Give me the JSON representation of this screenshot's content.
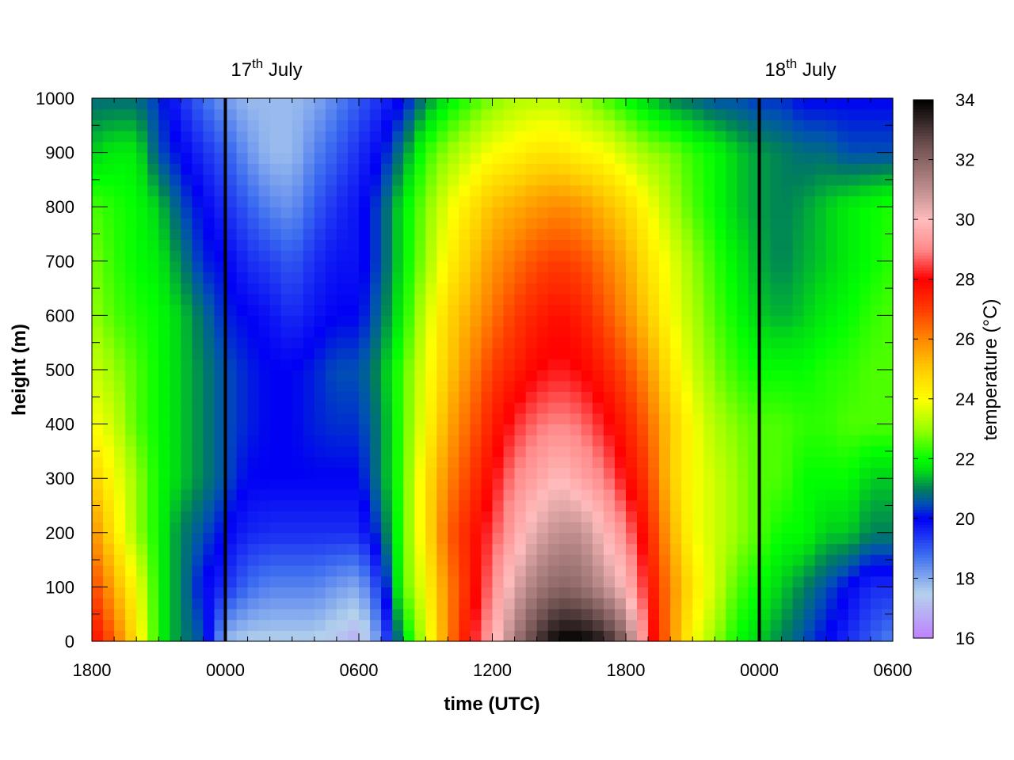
{
  "chart_data": {
    "type": "heatmap",
    "xlabel": "time (UTC)",
    "ylabel": "height (m)",
    "colorbar_label": "temperature (°C)",
    "x_unit": "hours since 1800 UTC 16 July",
    "xlim": [
      0,
      36
    ],
    "ylim": [
      0,
      1000
    ],
    "zlim": [
      16,
      34
    ],
    "x_ticks": [
      {
        "pos": 0,
        "label": "1800"
      },
      {
        "pos": 6,
        "label": "0000"
      },
      {
        "pos": 12,
        "label": "0600"
      },
      {
        "pos": 18,
        "label": "1200"
      },
      {
        "pos": 24,
        "label": "1800"
      },
      {
        "pos": 30,
        "label": "0000"
      },
      {
        "pos": 36,
        "label": "0600"
      }
    ],
    "y_ticks": [
      0,
      100,
      200,
      300,
      400,
      500,
      600,
      700,
      800,
      900,
      1000
    ],
    "colorbar_ticks": [
      16,
      18,
      20,
      22,
      24,
      26,
      28,
      30,
      32,
      34
    ],
    "day_markers": [
      {
        "pos": 6,
        "day": "17",
        "suffix": "th",
        "month": "July"
      },
      {
        "pos": 30,
        "day": "18",
        "suffix": "th",
        "month": "July"
      }
    ],
    "colormap": [
      {
        "t": 16.0,
        "color": "#bf80ff"
      },
      {
        "t": 17.5,
        "color": "#b4d2ec"
      },
      {
        "t": 18.8,
        "color": "#3c6cf0"
      },
      {
        "t": 20.0,
        "color": "#0000f5"
      },
      {
        "t": 20.5,
        "color": "#0050b4"
      },
      {
        "t": 21.0,
        "color": "#00805a"
      },
      {
        "t": 21.6,
        "color": "#00dc14"
      },
      {
        "t": 22.0,
        "color": "#00ff00"
      },
      {
        "t": 23.0,
        "color": "#9aff00"
      },
      {
        "t": 24.0,
        "color": "#ffff00"
      },
      {
        "t": 25.0,
        "color": "#ffcc00"
      },
      {
        "t": 26.0,
        "color": "#ff8800"
      },
      {
        "t": 27.0,
        "color": "#ff3c00"
      },
      {
        "t": 28.0,
        "color": "#ff0000"
      },
      {
        "t": 29.0,
        "color": "#ff8a8a"
      },
      {
        "t": 30.0,
        "color": "#ffbcbc"
      },
      {
        "t": 31.0,
        "color": "#c08e8e"
      },
      {
        "t": 32.5,
        "color": "#6e5050"
      },
      {
        "t": 34.0,
        "color": "#000000"
      }
    ],
    "grid_hours": [
      0,
      1,
      2,
      3,
      4,
      5,
      6,
      7,
      8,
      9,
      10,
      11,
      12,
      13,
      14,
      15,
      16,
      17,
      18,
      19,
      20,
      21,
      22,
      23,
      24,
      25,
      26,
      27,
      28,
      29,
      30,
      31,
      32,
      33,
      34,
      35,
      36
    ],
    "grid_heights": [
      0,
      100,
      200,
      300,
      400,
      500,
      600,
      700,
      800,
      900,
      1000
    ],
    "temperature_grid": [
      [
        28.0,
        26.5,
        24.5,
        22.0,
        21.0,
        20.5,
        17.8,
        17.5,
        17.5,
        17.5,
        17.5,
        17.2,
        16.8,
        18.5,
        21.5,
        23.5,
        26.0,
        28.0,
        29.5,
        31.5,
        33.0,
        34.0,
        34.0,
        33.5,
        32.0,
        28.5,
        26.0,
        24.0,
        23.0,
        22.0,
        21.5,
        21.0,
        20.5,
        20.0,
        19.5,
        19.0,
        18.5
      ],
      [
        27.0,
        25.5,
        24.0,
        22.0,
        21.0,
        20.0,
        19.5,
        18.8,
        18.5,
        18.5,
        18.5,
        18.2,
        18.0,
        19.5,
        22.5,
        24.0,
        26.0,
        27.5,
        29.0,
        30.5,
        31.5,
        32.0,
        31.8,
        31.0,
        30.0,
        28.0,
        26.0,
        24.5,
        23.5,
        22.5,
        22.0,
        21.5,
        21.0,
        20.5,
        20.0,
        19.5,
        19.5
      ],
      [
        26.0,
        24.5,
        23.0,
        22.0,
        21.0,
        20.5,
        20.0,
        19.6,
        19.5,
        19.5,
        19.5,
        19.5,
        19.5,
        20.5,
        22.5,
        24.5,
        26.5,
        27.5,
        28.5,
        29.5,
        30.5,
        31.0,
        31.0,
        30.0,
        29.0,
        27.5,
        25.5,
        24.0,
        23.5,
        23.0,
        22.5,
        22.0,
        22.0,
        21.5,
        21.5,
        21.0,
        21.0
      ],
      [
        25.0,
        24.0,
        23.0,
        22.0,
        21.5,
        21.0,
        20.5,
        20.0,
        20.0,
        20.0,
        20.0,
        20.0,
        20.0,
        21.0,
        22.5,
        24.5,
        26.0,
        27.0,
        28.0,
        29.0,
        29.5,
        30.0,
        29.5,
        29.0,
        28.0,
        27.0,
        25.0,
        24.0,
        23.5,
        23.0,
        22.5,
        22.5,
        22.0,
        22.0,
        22.0,
        21.5,
        21.5
      ],
      [
        24.0,
        23.5,
        22.5,
        22.0,
        21.5,
        21.0,
        20.5,
        20.2,
        20.0,
        20.0,
        20.2,
        20.3,
        20.3,
        21.0,
        22.5,
        24.0,
        25.5,
        26.5,
        27.5,
        28.3,
        28.8,
        29.0,
        28.8,
        28.2,
        27.5,
        26.5,
        25.0,
        24.0,
        23.2,
        22.8,
        22.5,
        22.5,
        22.3,
        22.3,
        22.5,
        22.5,
        22.5
      ],
      [
        23.5,
        23.0,
        22.5,
        22.0,
        21.5,
        21.0,
        20.5,
        20.2,
        20.0,
        20.0,
        20.2,
        20.5,
        20.5,
        21.2,
        22.5,
        23.8,
        25.0,
        26.0,
        27.0,
        27.5,
        28.0,
        28.2,
        28.0,
        27.5,
        26.8,
        25.8,
        24.5,
        23.5,
        22.8,
        22.3,
        22.0,
        22.0,
        22.0,
        22.2,
        22.3,
        22.5,
        22.5
      ],
      [
        23.0,
        22.5,
        22.2,
        22.0,
        21.5,
        20.8,
        20.2,
        20.0,
        19.8,
        19.5,
        19.8,
        20.0,
        20.0,
        20.8,
        22.0,
        23.5,
        24.8,
        25.5,
        26.3,
        27.0,
        27.5,
        27.8,
        27.5,
        26.8,
        26.0,
        25.0,
        24.0,
        23.2,
        22.5,
        22.0,
        21.5,
        21.3,
        21.5,
        21.8,
        22.0,
        22.3,
        22.5
      ],
      [
        22.8,
        22.3,
        22.0,
        21.8,
        21.0,
        20.2,
        20.0,
        19.5,
        19.3,
        19.0,
        19.5,
        19.8,
        19.8,
        20.5,
        21.8,
        23.0,
        24.2,
        25.0,
        25.8,
        26.3,
        26.8,
        27.0,
        26.8,
        26.2,
        25.5,
        24.5,
        23.8,
        23.0,
        22.3,
        21.8,
        21.3,
        21.0,
        21.3,
        21.5,
        21.8,
        22.0,
        22.3
      ],
      [
        22.5,
        22.2,
        22.0,
        21.5,
        20.5,
        20.0,
        19.5,
        19.0,
        18.5,
        18.3,
        19.0,
        19.5,
        19.8,
        20.5,
        21.8,
        22.8,
        23.8,
        24.5,
        25.2,
        25.5,
        25.8,
        26.0,
        25.8,
        25.3,
        24.8,
        24.0,
        23.2,
        22.5,
        22.0,
        21.5,
        21.2,
        21.0,
        21.2,
        21.5,
        21.8,
        22.0,
        22.2
      ],
      [
        21.5,
        21.8,
        21.8,
        20.5,
        20.0,
        19.5,
        19.0,
        18.3,
        17.8,
        17.8,
        18.5,
        19.0,
        19.5,
        20.0,
        21.0,
        22.3,
        23.0,
        23.5,
        24.0,
        24.2,
        24.5,
        24.5,
        24.2,
        24.0,
        23.5,
        23.0,
        22.8,
        22.3,
        22.0,
        21.5,
        21.2,
        21.0,
        20.8,
        20.8,
        20.5,
        20.5,
        20.5
      ],
      [
        20.8,
        20.8,
        20.8,
        20.3,
        19.5,
        18.8,
        18.2,
        17.8,
        17.8,
        17.8,
        18.0,
        18.5,
        19.0,
        19.5,
        20.0,
        21.0,
        21.8,
        22.3,
        22.8,
        23.2,
        23.3,
        23.3,
        23.0,
        22.5,
        22.0,
        21.5,
        21.0,
        20.8,
        20.5,
        20.5,
        20.3,
        20.3,
        20.0,
        20.0,
        20.0,
        20.0,
        20.0
      ]
    ]
  }
}
